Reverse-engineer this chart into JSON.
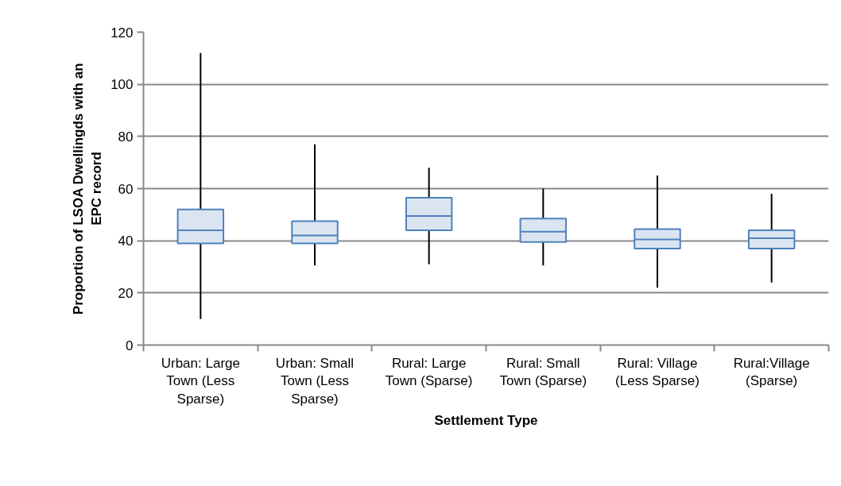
{
  "chart_data": {
    "type": "box",
    "xlabel": "Settlement Type",
    "ylabel": "Proportion of LSOA Dwellingds with an EPC record",
    "categories": [
      "Urban: Large Town (Less Sparse)",
      "Urban: Small Town (Less Sparse)",
      "Rural: Large Town (Sparse)",
      "Rural: Small Town (Sparse)",
      "Rural: Village (Less Sparse)",
      "Rural:Village (Sparse)"
    ],
    "boxes": [
      {
        "low": 10,
        "q1": 39,
        "median": 44,
        "q3": 52,
        "high": 112
      },
      {
        "low": 30.5,
        "q1": 39,
        "median": 42,
        "q3": 47.5,
        "high": 77
      },
      {
        "low": 31,
        "q1": 44,
        "median": 49.5,
        "q3": 56.5,
        "high": 68
      },
      {
        "low": 30.5,
        "q1": 39.5,
        "median": 43.5,
        "q3": 48.5,
        "high": 60
      },
      {
        "low": 22,
        "q1": 37,
        "median": 40.5,
        "q3": 44.5,
        "high": 65
      },
      {
        "low": 24,
        "q1": 37,
        "median": 41,
        "q3": 44,
        "high": 58
      }
    ],
    "color": "#4f81bd",
    "ylim": [
      0,
      120
    ],
    "yticks": [
      0,
      20,
      40,
      60,
      80,
      100,
      120
    ],
    "grid": "y"
  }
}
